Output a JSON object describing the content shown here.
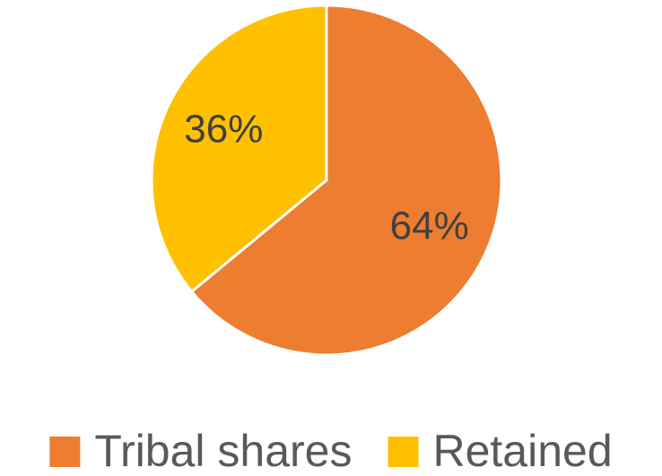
{
  "chart_data": {
    "type": "pie",
    "categories": [
      "Tribal shares",
      "Retained"
    ],
    "values": [
      64,
      36
    ],
    "value_labels": [
      "64%",
      "36%"
    ],
    "colors": [
      "#ED7D31",
      "#FFC000"
    ],
    "legend": "bottom"
  }
}
